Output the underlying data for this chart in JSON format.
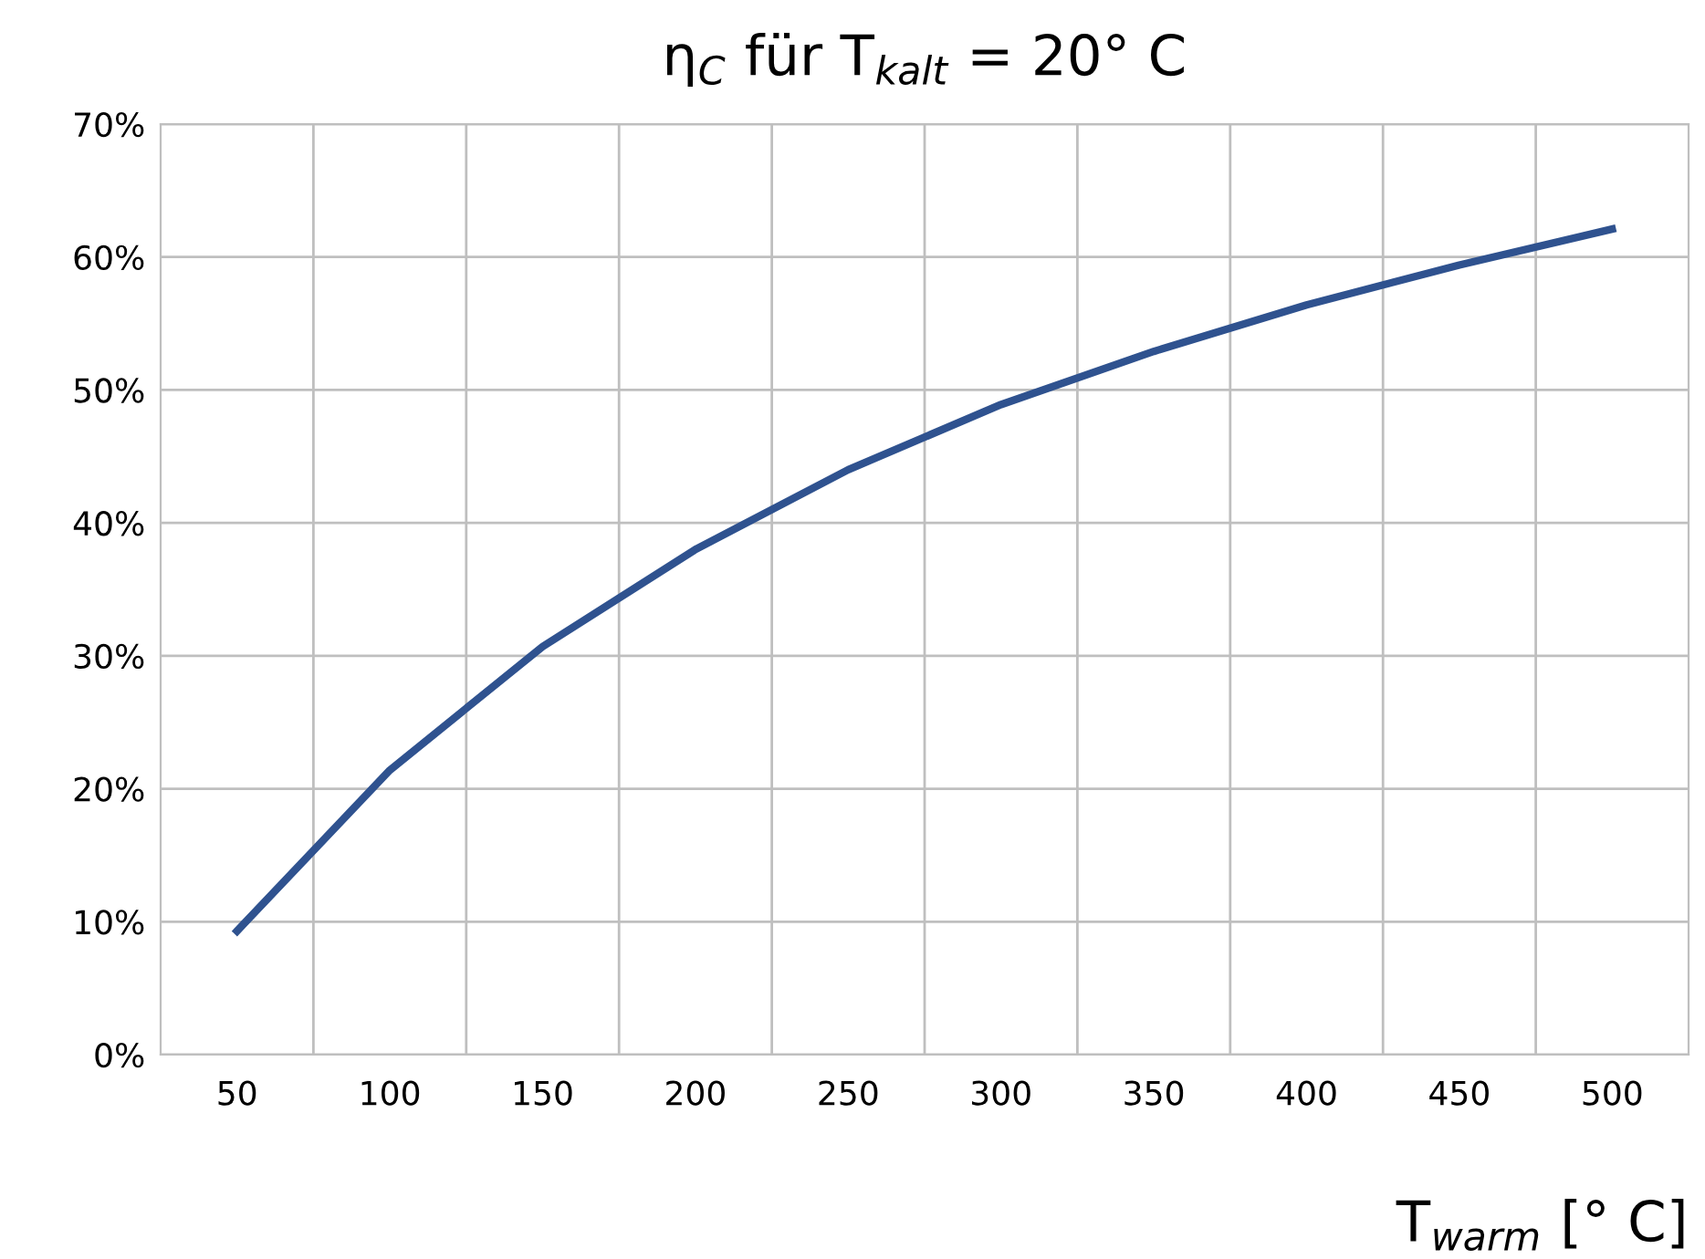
{
  "chart_data": {
    "type": "line",
    "title": "η$_{C}$ für T$_{kalt}$ = 20° C",
    "xlabel": "T$_{warm}$ [° C]",
    "categories": [
      "50",
      "100",
      "150",
      "200",
      "250",
      "300",
      "350",
      "400",
      "450",
      "500"
    ],
    "series": [
      {
        "color": "#2f528f",
        "values": [
          9.3,
          21.4,
          30.7,
          38.0,
          44.0,
          48.9,
          52.9,
          56.4,
          59.4,
          62.1
        ]
      }
    ],
    "ylim": [
      0,
      70
    ],
    "yticks": [
      {
        "value": 0,
        "label": "0%"
      },
      {
        "value": 10,
        "label": "10%"
      },
      {
        "value": 20,
        "label": "20%"
      },
      {
        "value": 30,
        "label": "30%"
      },
      {
        "value": 40,
        "label": "40%"
      },
      {
        "value": 50,
        "label": "50%"
      },
      {
        "value": 60,
        "label": "60%"
      },
      {
        "value": 70,
        "label": "70%"
      }
    ],
    "grid": true,
    "marker": "none",
    "line_style": "solid"
  }
}
